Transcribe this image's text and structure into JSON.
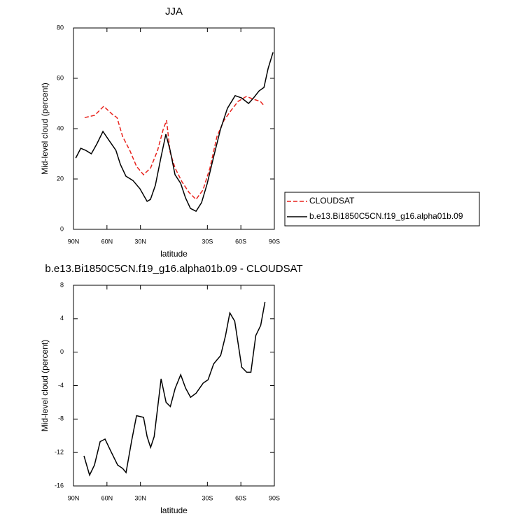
{
  "chart_data": [
    {
      "type": "line",
      "title": "JJA",
      "x_label": "latitude",
      "y_label": "Mid-level cloud (percent)",
      "xlim": [
        90,
        -90
      ],
      "xticks": [
        {
          "value": 90,
          "label": "90N"
        },
        {
          "value": 60,
          "label": "60N"
        },
        {
          "value": 30,
          "label": "30N"
        },
        {
          "value": -30,
          "label": "30S"
        },
        {
          "value": -60,
          "label": "60S"
        },
        {
          "value": -90,
          "label": "90S"
        }
      ],
      "ylim": [
        0,
        80
      ],
      "yticks": [
        0,
        20,
        40,
        60,
        80
      ],
      "legend": "right",
      "series": [
        {
          "name": "CLOUDSAT",
          "color": "#e8221c",
          "dash": true,
          "x": [
            80,
            71,
            62.9,
            55.5,
            51,
            46,
            39.6,
            33.5,
            27.2,
            20.9,
            14.6,
            9.6,
            6.6,
            3.4,
            -1,
            -7.2,
            -13.5,
            -19.8,
            -26,
            -32.3,
            -38.6,
            -44.9,
            -51.2,
            -57.4,
            -65,
            -71.3,
            -77.5,
            -81.3
          ],
          "values": [
            44.4,
            45.3,
            48.9,
            45.8,
            44.4,
            36.9,
            31.4,
            25,
            21.7,
            24.4,
            31.4,
            39.7,
            43.3,
            30.6,
            24.4,
            18.9,
            14.7,
            11.9,
            15.6,
            24.4,
            36.9,
            43.3,
            47.2,
            50.8,
            52.8,
            51.7,
            50.8,
            48.9
          ]
        },
        {
          "name": "b.e13.Bi1850C5CN.f19_g16.alpha01b.09",
          "color": "#000000",
          "dash": false,
          "x": [
            88,
            83.5,
            79,
            74,
            69,
            63.6,
            58.6,
            52,
            48,
            43,
            36.7,
            30.4,
            24,
            21,
            16.6,
            11.6,
            7.2,
            3.4,
            -1,
            -6,
            -10.4,
            -14.8,
            -19.8,
            -24.8,
            -29.8,
            -35.5,
            -41.7,
            -48,
            -54.9,
            -60.6,
            -66.9,
            -71.3,
            -76.3,
            -80.7,
            -84.4,
            -88.8
          ],
          "values": [
            28.3,
            32.2,
            31.4,
            30,
            34,
            38.9,
            35.6,
            31.4,
            25.8,
            21.1,
            19.4,
            16.1,
            11.1,
            11.9,
            17.5,
            28.6,
            37.8,
            31.4,
            21.7,
            18.3,
            12.5,
            8.3,
            7.2,
            10.6,
            18.1,
            28.6,
            39.7,
            48.1,
            53.1,
            52.2,
            50,
            52.2,
            55,
            56.4,
            63.9,
            70.3
          ]
        }
      ]
    },
    {
      "type": "line",
      "title": "b.e13.Bi1850C5CN.f19_g16.alpha01b.09 - CLOUDSAT",
      "x_label": "latitude",
      "y_label": "Mid-level cloud (percent)",
      "xlim": [
        90,
        -90
      ],
      "xticks": [
        {
          "value": 90,
          "label": "90N"
        },
        {
          "value": 60,
          "label": "60N"
        },
        {
          "value": 30,
          "label": "30N"
        },
        {
          "value": -30,
          "label": "30S"
        },
        {
          "value": -60,
          "label": "60S"
        },
        {
          "value": -90,
          "label": "90S"
        }
      ],
      "ylim": [
        -16,
        8
      ],
      "yticks": [
        -16,
        -12,
        -8,
        -4,
        0,
        4,
        8
      ],
      "series": [
        {
          "color": "#000000",
          "dash": false,
          "x": [
            80.6,
            75.6,
            71.2,
            66.1,
            61.7,
            56.7,
            50.4,
            46,
            42.9,
            37.9,
            33.5,
            27.2,
            24,
            20.9,
            17.7,
            11.5,
            7,
            3.2,
            -1.2,
            -6.1,
            -10.5,
            -14.9,
            -19.9,
            -26.2,
            -30.6,
            -35.6,
            -41.9,
            -46.3,
            -50.1,
            -54.5,
            -60.8,
            -65.2,
            -69,
            -73.4,
            -77.8,
            -81.6
          ],
          "values": [
            -12.4,
            -14.7,
            -13.5,
            -10.7,
            -10.4,
            -11.8,
            -13.5,
            -13.9,
            -14.4,
            -10.6,
            -7.6,
            -7.8,
            -10.1,
            -11.4,
            -10.1,
            -3.2,
            -6,
            -6.5,
            -4.3,
            -2.7,
            -4.3,
            -5.4,
            -4.9,
            -3.7,
            -3.3,
            -1.4,
            -0.4,
            2,
            4.7,
            3.7,
            -1.8,
            -2.4,
            -2.4,
            2,
            3.2,
            6
          ]
        }
      ]
    }
  ]
}
